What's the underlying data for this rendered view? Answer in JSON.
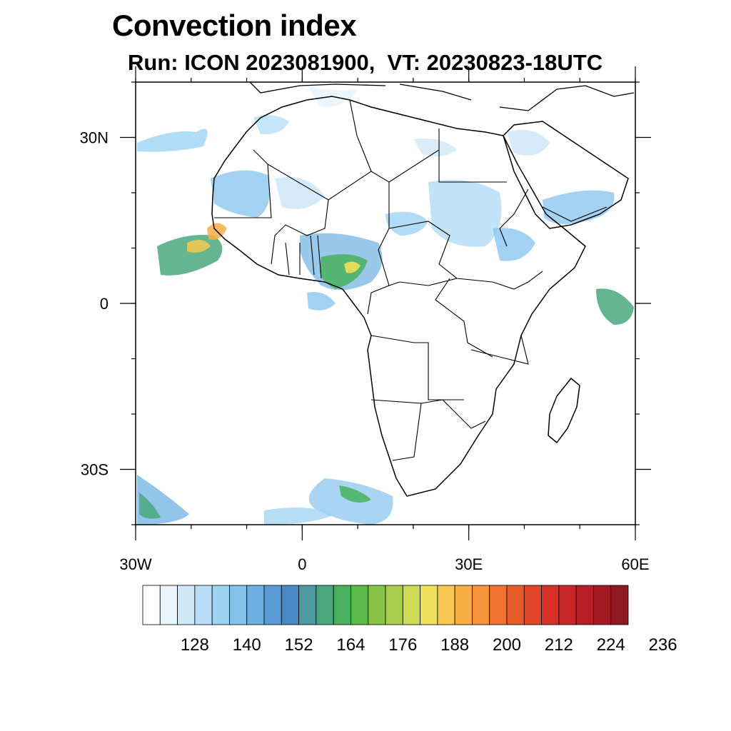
{
  "header": {
    "title": "Convection index",
    "subtitle": "Run: ICON 2023081900,  VT: 20230823-18UTC"
  },
  "map": {
    "region": "Africa",
    "lon_range": [
      -30,
      60
    ],
    "lat_range": [
      -40,
      40
    ],
    "lat_ticks": [
      {
        "value": 30,
        "label": "30N"
      },
      {
        "value": 0,
        "label": "0"
      },
      {
        "value": -30,
        "label": "30S"
      }
    ],
    "lon_ticks": [
      {
        "value": -30,
        "label": "30W"
      },
      {
        "value": 0,
        "label": "0"
      },
      {
        "value": 30,
        "label": "30E"
      },
      {
        "value": 60,
        "label": "60E"
      }
    ]
  },
  "colorbar": {
    "label_values": [
      "128",
      "140",
      "152",
      "164",
      "176",
      "188",
      "200",
      "212",
      "224",
      "236"
    ],
    "colors": [
      "#ffffff",
      "#e8f4fc",
      "#cfe8f8",
      "#b7def6",
      "#9dd3f2",
      "#84c2ec",
      "#6fb0e3",
      "#5a9bd6",
      "#4a89c6",
      "#4c99a0",
      "#4aa87f",
      "#48b05e",
      "#5cba4a",
      "#86c347",
      "#aacd4b",
      "#cddb52",
      "#eee05a",
      "#f7c84f",
      "#f7ae45",
      "#f49339",
      "#f0742f",
      "#e85c29",
      "#e04527",
      "#d83028",
      "#c82628",
      "#b81e27",
      "#a51a24",
      "#901822"
    ]
  }
}
